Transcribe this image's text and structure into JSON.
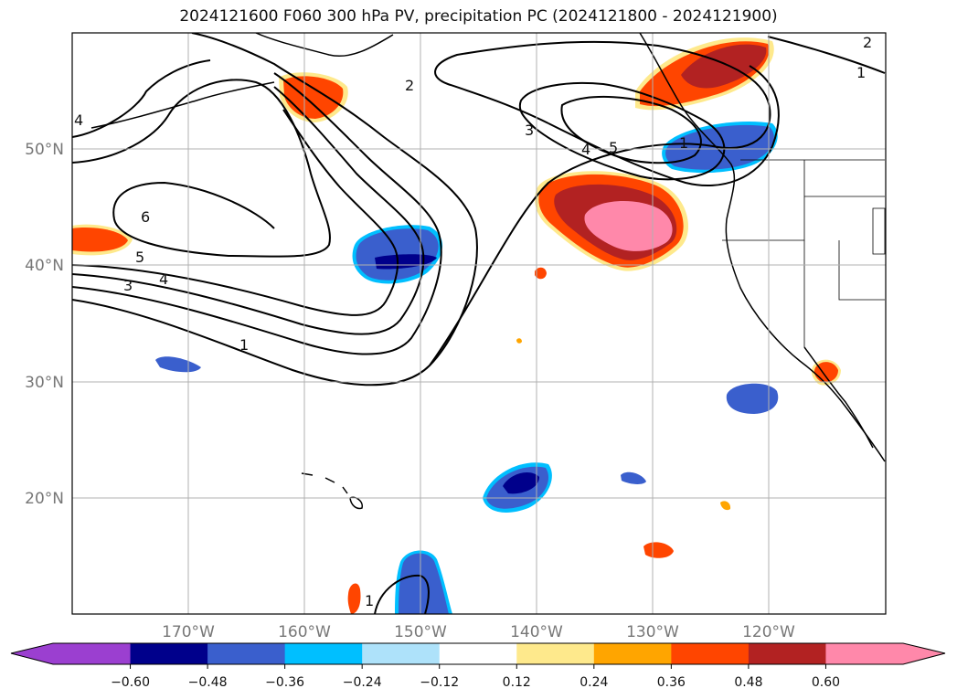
{
  "title": "2024121600 F060 300 hPa PV, precipitation PC (2024121800 - 2024121900)",
  "map": {
    "lon_range": [
      -180,
      -110
    ],
    "lat_range": [
      10,
      60
    ],
    "lat_ticks": [
      "20°N",
      "30°N",
      "40°N",
      "50°N"
    ],
    "lat_values": [
      20,
      30,
      40,
      50
    ],
    "lon_ticks": [
      "170°W",
      "160°W",
      "150°W",
      "140°W",
      "130°W",
      "120°W"
    ],
    "lon_values": [
      -170,
      -160,
      -150,
      -140,
      -130,
      -120
    ],
    "grid": true
  },
  "pv_contour_labels": [
    "1",
    "2",
    "3",
    "4",
    "5",
    "6",
    "1",
    "3",
    "4",
    "5",
    "2",
    "1",
    "4",
    "1"
  ],
  "colorbar": {
    "levels": [
      "−0.60",
      "−0.48",
      "−0.36",
      "−0.24",
      "−0.12",
      "0.12",
      "0.24",
      "0.36",
      "0.48",
      "0.60"
    ],
    "colors": [
      "#9b3fd0",
      "#00008b",
      "#3a5fcd",
      "#00bfff",
      "#aee2fa",
      "#ffffff",
      "#fee98c",
      "#ffa500",
      "#ff4500",
      "#b22222",
      "#ff88aa"
    ]
  },
  "colors": {
    "blue_mid": "#3a5fcd",
    "blue_dark": "#00008b",
    "cyan": "#00bfff",
    "yellow": "#fee98c",
    "orange": "#ffa500",
    "red": "#ff4500",
    "crimson": "#b22222",
    "pink": "#ff88aa"
  }
}
